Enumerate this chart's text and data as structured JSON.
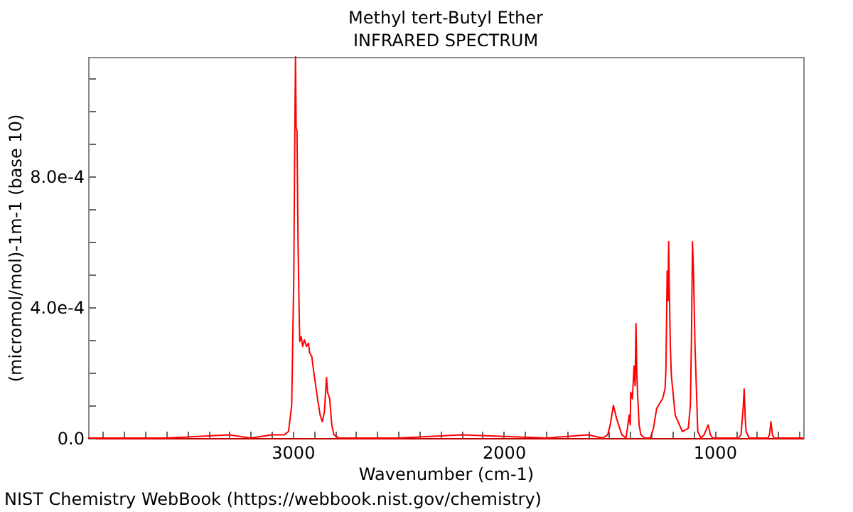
{
  "chart_data": {
    "type": "line",
    "title": "Methyl tert-Butyl Ether",
    "subtitle": "INFRARED SPECTRUM",
    "xlabel": "Wavenumber (cm-1)",
    "ylabel": "(micromol/mol)-1m-1 (base 10)",
    "annotations": [
      "NIST Chemistry WebBook (https://webbook.nist.gov/chemistry)"
    ],
    "grid": false,
    "xlim": [
      3970,
      580
    ],
    "ylim": [
      0,
      0.001165
    ],
    "xticks": [
      {
        "value": 3900,
        "label": null
      },
      {
        "value": 3800,
        "label": null
      },
      {
        "value": 3700,
        "label": null
      },
      {
        "value": 3600,
        "label": null
      },
      {
        "value": 3500,
        "label": null
      },
      {
        "value": 3400,
        "label": null
      },
      {
        "value": 3300,
        "label": null
      },
      {
        "value": 3200,
        "label": null
      },
      {
        "value": 3100,
        "label": null
      },
      3000,
      {
        "value": 2900,
        "label": null
      },
      {
        "value": 2800,
        "label": null
      },
      {
        "value": 2700,
        "label": null
      },
      {
        "value": 2600,
        "label": null
      },
      {
        "value": 2500,
        "label": null
      },
      {
        "value": 2400,
        "label": null
      },
      {
        "value": 2300,
        "label": null
      },
      {
        "value": 2200,
        "label": null
      },
      {
        "value": 2100,
        "label": null
      },
      2000,
      {
        "value": 1900,
        "label": null
      },
      {
        "value": 1800,
        "label": null
      },
      {
        "value": 1700,
        "label": null
      },
      {
        "value": 1600,
        "label": null
      },
      {
        "value": 1500,
        "label": null
      },
      {
        "value": 1400,
        "label": null
      },
      {
        "value": 1300,
        "label": null
      },
      {
        "value": 1200,
        "label": null
      },
      {
        "value": 1100,
        "label": null
      },
      1000,
      {
        "value": 900,
        "label": null
      },
      {
        "value": 800,
        "label": null
      },
      {
        "value": 700,
        "label": null
      },
      {
        "value": 600,
        "label": null
      }
    ],
    "yticks": [
      {
        "value": 0,
        "label": "0.0"
      },
      {
        "value": 0.0001,
        "label": null
      },
      {
        "value": 0.0002,
        "label": null
      },
      {
        "value": 0.0003,
        "label": null
      },
      {
        "value": 0.0004,
        "label": "4.0e-4"
      },
      {
        "value": 0.0005,
        "label": null
      },
      {
        "value": 0.0006,
        "label": null
      },
      {
        "value": 0.0007,
        "label": null
      },
      {
        "value": 0.0008,
        "label": "8.0e-4"
      },
      {
        "value": 0.0009,
        "label": null
      },
      {
        "value": 0.001,
        "label": null
      },
      {
        "value": 0.0011,
        "label": null
      }
    ],
    "x": [
      3970,
      3600,
      3300,
      3200,
      3100,
      3040,
      3020,
      3005,
      2995,
      2990,
      2987,
      2984,
      2980,
      2975,
      2970,
      2967,
      2960,
      2953,
      2945,
      2935,
      2925,
      2920,
      2910,
      2900,
      2880,
      2870,
      2860,
      2850,
      2840,
      2835,
      2825,
      2815,
      2805,
      2780,
      2700,
      2500,
      2200,
      1800,
      1600,
      1530,
      1507,
      1495,
      1480,
      1465,
      1440,
      1420,
      1405,
      1400,
      1398,
      1390,
      1382,
      1377,
      1373,
      1369,
      1365,
      1358,
      1350,
      1330,
      1305,
      1290,
      1275,
      1247,
      1235,
      1231,
      1225,
      1221,
      1218,
      1215,
      1210,
      1205,
      1187,
      1153,
      1125,
      1115,
      1110,
      1105,
      1100,
      1093,
      1080,
      1065,
      1050,
      1031,
      1020,
      1009,
      887,
      875,
      865,
      860,
      855,
      851,
      836,
      747,
      740,
      733,
      726,
      718,
      580
    ],
    "series": [
      {
        "color": "#ff0000",
        "values": [
          0,
          0,
          1e-05,
          0,
          1e-05,
          1e-05,
          2e-05,
          0.0001,
          0.0005,
          0.00095,
          0.001165,
          0.00095,
          0.00094,
          0.0006,
          0.0004,
          0.000295,
          0.00031,
          0.00028,
          0.0003,
          0.00028,
          0.00029,
          0.00026,
          0.00025,
          0.0002,
          0.00011,
          7e-05,
          5e-05,
          8e-05,
          0.000185,
          0.00014,
          0.00012,
          4e-05,
          1e-05,
          0,
          0,
          0,
          1e-05,
          0,
          1e-05,
          0,
          1e-05,
          4e-05,
          0.0001,
          6e-05,
          1e-05,
          0,
          7e-05,
          4e-05,
          0.00014,
          0.00012,
          0.00022,
          0.00016,
          0.00035,
          0.0002,
          0.00013,
          4e-05,
          1e-05,
          0,
          0,
          3e-05,
          9e-05,
          0.00012,
          0.00015,
          0.00021,
          0.00051,
          0.00042,
          0.0006,
          0.00046,
          0.00028,
          0.00019,
          7e-05,
          2e-05,
          3e-05,
          0.0001,
          0.0003,
          0.0006,
          0.0005,
          0.00028,
          2e-05,
          0,
          1e-05,
          4e-05,
          1e-05,
          0,
          0,
          1e-05,
          9e-05,
          0.00015,
          6e-05,
          2e-05,
          0,
          0,
          1e-05,
          5e-05,
          1e-05,
          0,
          0
        ]
      }
    ]
  }
}
